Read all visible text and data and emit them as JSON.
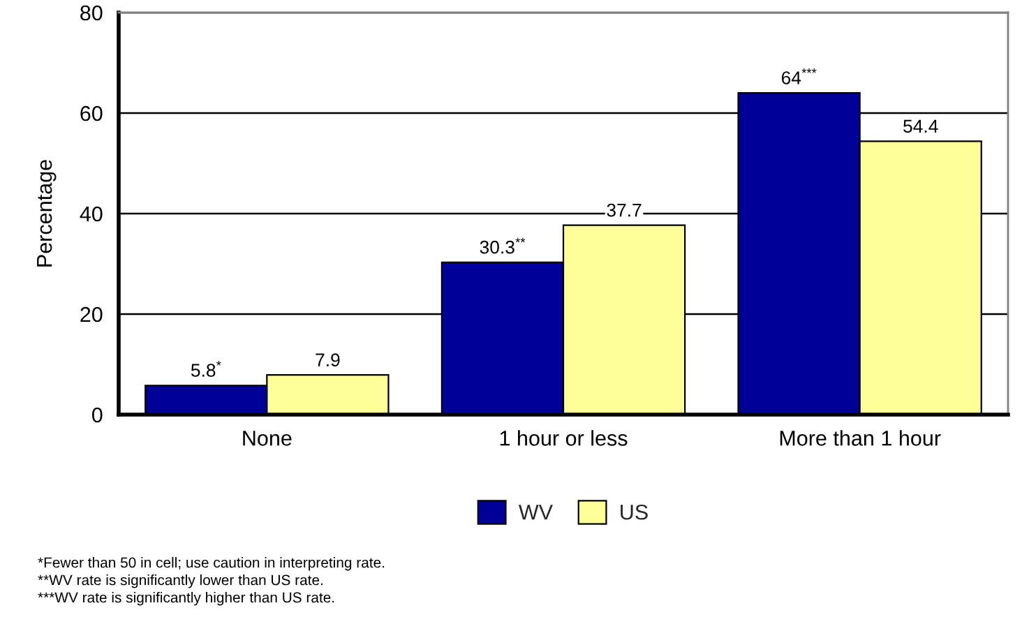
{
  "chart_data": {
    "type": "bar",
    "ylabel": "Percentage",
    "categories": [
      "None",
      "1 hour or less",
      "More than 1 hour"
    ],
    "series": [
      {
        "name": "WV",
        "color": "#000099",
        "values": [
          5.8,
          30.3,
          64
        ],
        "value_labels": [
          "5.8$^{*}$",
          "30.3$^{**}$",
          "64$^{***}$"
        ]
      },
      {
        "name": "US",
        "color": "#ffff99",
        "values": [
          7.9,
          37.7,
          54.4
        ],
        "value_labels": [
          "7.9",
          "37.7",
          "54.4"
        ]
      }
    ],
    "ylim": [
      0,
      80
    ],
    "yticks": [
      0,
      20,
      40,
      60,
      80
    ],
    "grid": "y",
    "legend": "bottom",
    "annotations": [
      "*Fewer than 50 in cell; use caution in interpreting rate.",
      "**WV rate is significantly lower than US rate.",
      "***WV rate is significantly higher than US rate."
    ]
  }
}
